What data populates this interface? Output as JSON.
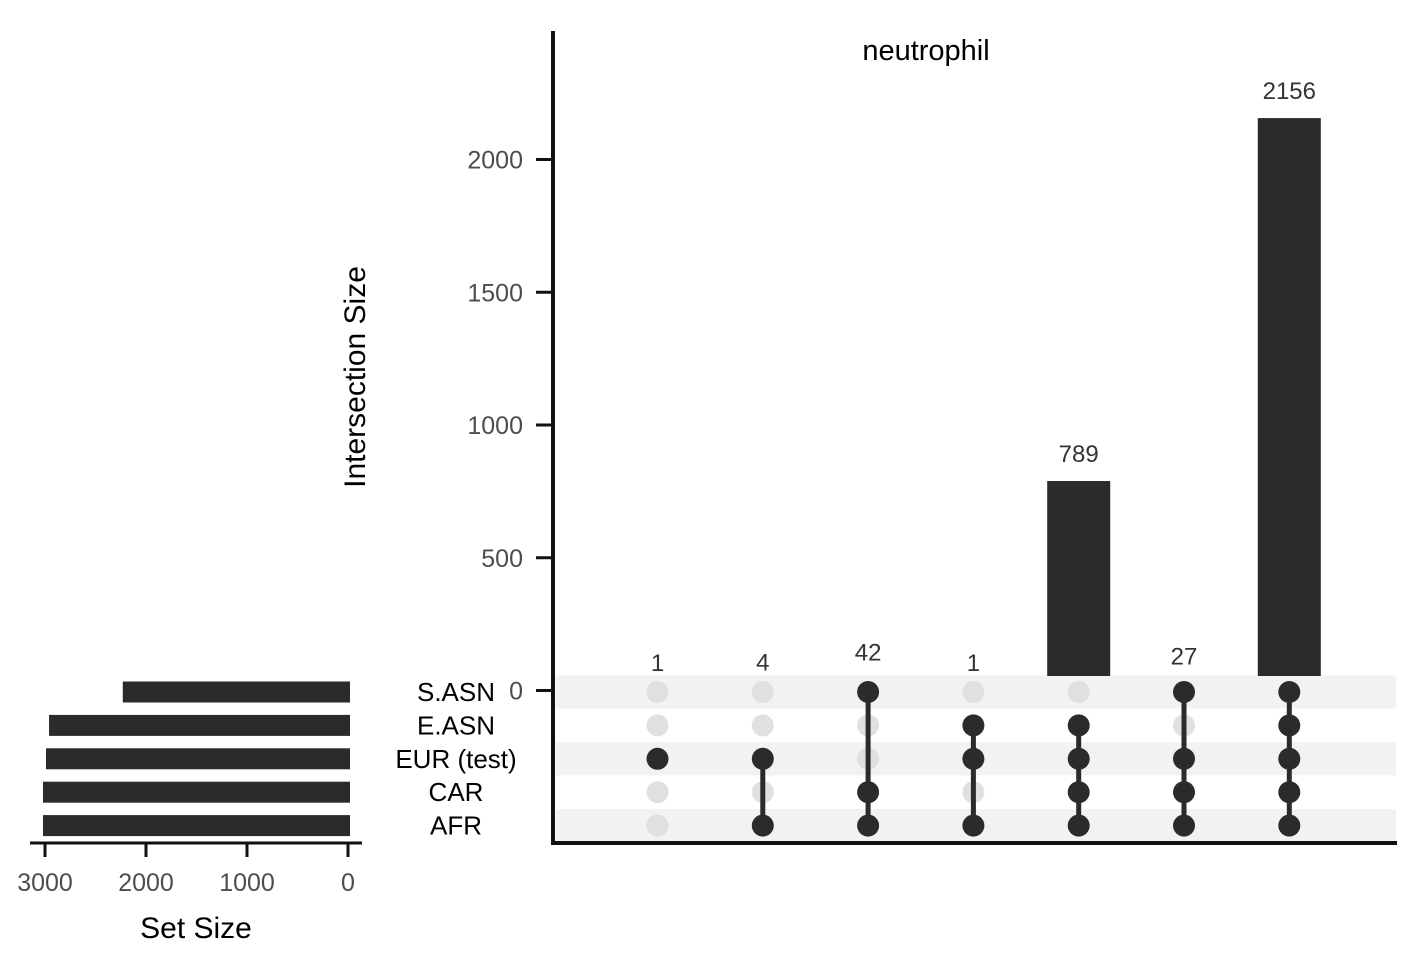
{
  "chart_data": {
    "type": "upset",
    "title": "neutrophil",
    "intersection_axis": {
      "label": "Intersection Size",
      "ticks": [
        0,
        500,
        1000,
        1500,
        2000
      ],
      "ylim": [
        0,
        2400
      ]
    },
    "set_size_axis": {
      "label": "Set Size",
      "ticks": [
        3000,
        2000,
        1000,
        0
      ],
      "xlim": [
        3100,
        0
      ]
    },
    "sets": [
      "S.ASN",
      "E.ASN",
      "EUR (test)",
      "CAR",
      "AFR"
    ],
    "set_sizes": [
      2230,
      2960,
      2990,
      3020,
      3020
    ],
    "intersections": [
      {
        "value": 1,
        "label": "1",
        "members": [
          "EUR (test)"
        ]
      },
      {
        "value": 4,
        "label": "4",
        "members": [
          "EUR (test)",
          "AFR"
        ]
      },
      {
        "value": 42,
        "label": "42",
        "members": [
          "S.ASN",
          "CAR",
          "AFR"
        ]
      },
      {
        "value": 1,
        "label": "1",
        "members": [
          "E.ASN",
          "EUR (test)",
          "AFR"
        ]
      },
      {
        "value": 789,
        "label": "789",
        "members": [
          "E.ASN",
          "EUR (test)",
          "CAR",
          "AFR"
        ]
      },
      {
        "value": 27,
        "label": "27",
        "members": [
          "S.ASN",
          "EUR (test)",
          "CAR",
          "AFR"
        ]
      },
      {
        "value": 2156,
        "label": "2156",
        "members": [
          "S.ASN",
          "E.ASN",
          "EUR (test)",
          "CAR",
          "AFR"
        ]
      }
    ],
    "colors": {
      "bar": "#2b2b2b",
      "dot_active": "#2b2b2b",
      "dot_inactive": "#e0e0e0",
      "stripe": "#f2f2f2",
      "axis": "#111111"
    }
  }
}
